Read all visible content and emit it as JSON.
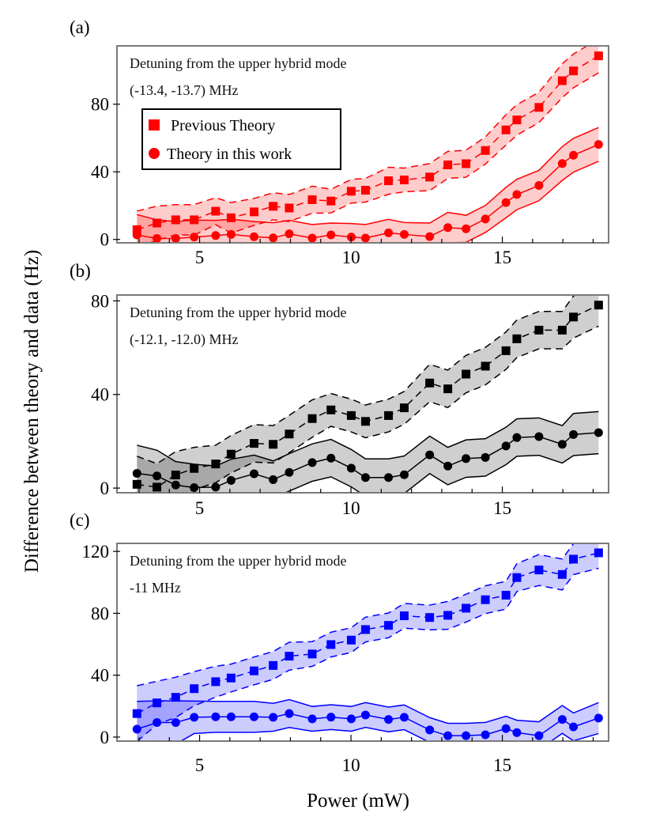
{
  "figure": {
    "ylabel": "Difference between theory and data (Hz)",
    "xlabel": "Power (mW)"
  },
  "legend": {
    "placement": "upper-left of panel (a)",
    "items": [
      {
        "label": "Previous Theory",
        "marker": "square"
      },
      {
        "label": "Theory in this work",
        "marker": "circle"
      }
    ]
  },
  "chart_data": [
    {
      "type": "line",
      "panel_label": "(a)",
      "annotation": [
        "Detuning from the upper hybrid mode",
        "(-13.4, -13.7) MHz"
      ],
      "color": "#ff0000",
      "xlim": [
        2.27,
        18.51
      ],
      "ylim": [
        -2,
        114.5
      ],
      "xticks": [
        5,
        10,
        15
      ],
      "yticks": [
        0,
        40,
        80
      ],
      "grid": false,
      "x": [
        2.93,
        3.59,
        4.21,
        4.82,
        5.53,
        6.04,
        6.8,
        7.43,
        7.96,
        8.72,
        9.34,
        10.01,
        10.48,
        11.24,
        11.76,
        12.6,
        13.2,
        13.8,
        14.44,
        15.12,
        15.48,
        16.21,
        16.98,
        17.35,
        18.18
      ],
      "series": [
        {
          "name": "Previous Theory",
          "marker": "square",
          "line": "dashed",
          "values": [
            5.8,
            9.7,
            11.6,
            11.6,
            16.7,
            12.8,
            16.3,
            19.6,
            18.6,
            23.5,
            22.7,
            28.5,
            29.1,
            34.7,
            35.2,
            36.9,
            44.1,
            44.8,
            52.6,
            64.8,
            70.7,
            78.1,
            93.9,
            99.7,
            108.6
          ],
          "error": [
            11,
            10,
            9,
            9,
            8,
            9,
            8,
            8,
            8,
            8,
            7,
            7,
            7,
            8,
            7,
            8,
            8,
            8,
            8,
            9,
            9,
            9,
            10,
            10,
            10
          ]
        },
        {
          "name": "Theory in this work",
          "marker": "circle",
          "line": "solid",
          "values": [
            2.7,
            0.6,
            0.6,
            1.4,
            2.3,
            3.0,
            1.6,
            0.9,
            3.3,
            0.8,
            2.7,
            1.4,
            0.8,
            3.9,
            3.0,
            1.7,
            7.0,
            6.3,
            12.1,
            21.8,
            26.6,
            31.9,
            44.9,
            49.8,
            56.2
          ],
          "error": [
            12,
            11,
            10,
            10,
            9,
            9,
            9,
            9,
            8,
            8,
            7,
            8,
            8,
            8,
            7,
            8,
            9,
            8,
            8,
            9,
            9,
            9,
            10,
            10,
            10
          ]
        }
      ]
    },
    {
      "type": "line",
      "panel_label": "(b)",
      "annotation": [
        "Detuning from the upper hybrid mode",
        "(-12.1, -12.0) MHz"
      ],
      "color": "#000000",
      "xlim": [
        2.27,
        18.51
      ],
      "ylim": [
        -2,
        82.5
      ],
      "xticks": [
        5,
        10,
        15
      ],
      "yticks": [
        0,
        40,
        80
      ],
      "grid": false,
      "x": [
        2.93,
        3.59,
        4.21,
        4.82,
        5.53,
        6.04,
        6.8,
        7.43,
        7.96,
        8.72,
        9.34,
        10.01,
        10.48,
        11.24,
        11.76,
        12.6,
        13.2,
        13.8,
        14.44,
        15.12,
        15.48,
        16.21,
        16.98,
        17.35,
        18.18
      ],
      "series": [
        {
          "name": "Previous Theory",
          "marker": "square",
          "line": "dashed",
          "values": [
            1.6,
            0.4,
            5.6,
            8.4,
            10.3,
            14.5,
            19.1,
            18.7,
            23.1,
            29.7,
            33.4,
            31.0,
            28.5,
            31.0,
            34.3,
            44.9,
            42.4,
            48.7,
            52.1,
            58.7,
            63.8,
            67.5,
            67.5,
            73.1,
            78.2
          ],
          "error": [
            12,
            10,
            10,
            9,
            8,
            8,
            8,
            8,
            8,
            8,
            7,
            7,
            7,
            7,
            7,
            8,
            8,
            8,
            8,
            8,
            8,
            8,
            8,
            9,
            9
          ]
        },
        {
          "name": "Theory in this work",
          "marker": "circle",
          "line": "solid",
          "values": [
            6.3,
            5.2,
            1.3,
            0.2,
            0.4,
            3.3,
            6.1,
            3.6,
            6.7,
            10.9,
            12.8,
            8.5,
            4.5,
            4.5,
            5.7,
            14.2,
            9.4,
            12.6,
            13.1,
            18.0,
            21.6,
            22.0,
            18.7,
            22.9,
            23.7
          ],
          "error": [
            12,
            11,
            10,
            10,
            9,
            9,
            8,
            8,
            8,
            8,
            8,
            8,
            8,
            8,
            8,
            8,
            8,
            8,
            8,
            8,
            8,
            8,
            8,
            9,
            9
          ]
        }
      ]
    },
    {
      "type": "line",
      "panel_label": "(c)",
      "annotation": [
        "Detuning from the upper hybrid mode",
        "-11 MHz"
      ],
      "color": "#0000ff",
      "xlim": [
        2.27,
        18.51
      ],
      "ylim": [
        -2.6,
        125.2
      ],
      "xticks": [
        5,
        10,
        15
      ],
      "yticks": [
        0,
        40,
        80,
        120
      ],
      "grid": false,
      "x": [
        2.93,
        3.59,
        4.21,
        4.82,
        5.53,
        6.04,
        6.8,
        7.43,
        7.96,
        8.72,
        9.34,
        10.01,
        10.48,
        11.24,
        11.76,
        12.6,
        13.2,
        13.8,
        14.44,
        15.12,
        15.48,
        16.21,
        16.98,
        17.35,
        18.18
      ],
      "series": [
        {
          "name": "Previous Theory",
          "marker": "square",
          "line": "dashed",
          "values": [
            15.2,
            22.1,
            25.7,
            31.3,
            35.8,
            38.2,
            42.8,
            46.3,
            52.3,
            53.7,
            59.8,
            62.7,
            69.5,
            72.2,
            78.4,
            77.3,
            78.7,
            83.3,
            88.8,
            91.7,
            103.1,
            108.0,
            105.1,
            115.0,
            119.1
          ],
          "error": [
            18,
            14,
            13,
            11,
            10,
            9,
            9,
            9,
            9,
            8,
            8,
            8,
            8,
            8,
            8,
            8,
            9,
            9,
            9,
            9,
            9,
            10,
            10,
            10,
            10
          ]
        },
        {
          "name": "Theory in this work",
          "marker": "circle",
          "line": "solid",
          "values": [
            5.1,
            9.4,
            9.4,
            12.8,
            13.1,
            13.1,
            13.1,
            12.8,
            15.2,
            11.8,
            12.9,
            11.8,
            14.3,
            11.4,
            12.8,
            4.6,
            0.9,
            0.9,
            1.5,
            5.5,
            2.9,
            0.9,
            11.4,
            6.6,
            12.3
          ],
          "error": [
            18,
            14,
            14,
            10.5,
            10,
            10,
            10,
            9,
            9,
            8,
            8,
            8,
            8,
            8,
            8,
            8,
            8,
            8,
            8,
            8,
            8,
            9,
            9,
            9,
            10
          ]
        }
      ]
    }
  ]
}
